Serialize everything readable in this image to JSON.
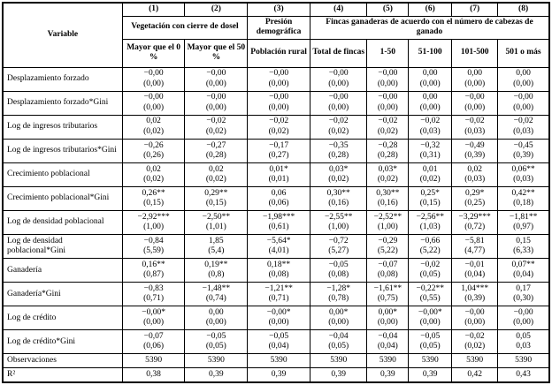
{
  "table": {
    "variable_header": "Variable",
    "col_numbers": [
      "(1)",
      "(2)",
      "(3)",
      "(4)",
      "(5)",
      "(6)",
      "(7)",
      "(8)"
    ],
    "group_headers": [
      {
        "label": "Vegetación con cierre de dosel",
        "span": 2
      },
      {
        "label": "Presión demográfica",
        "span": 1
      },
      {
        "label": "Fincas ganaderas de acuerdo con el número de cabezas de ganado",
        "span": 5
      }
    ],
    "sub_headers": [
      "Mayor que el 0 %",
      "Mayor que el 50 %",
      "Población rural",
      "Total de fincas",
      "1-50",
      "51-100",
      "101-500",
      "501 o más"
    ],
    "rows": [
      {
        "variable": "Desplazamiento forzado",
        "coefs": [
          "−0,00",
          "−0,00",
          "−0,00",
          "−0,00",
          "−0,00",
          "0,00",
          "0,00",
          "0,00"
        ],
        "ses": [
          "(0,00)",
          "(0,00)",
          "(0,00)",
          "(0,00)",
          "(0,00)",
          "(0,00)",
          "(0,00)",
          "(0,00)"
        ]
      },
      {
        "variable": "Desplazamiento forzado*Gini",
        "coefs": [
          "−0,00",
          "−0,00",
          "−0,00",
          "−0,00",
          "−0,00",
          "0,00",
          "−0,00",
          "−0,00"
        ],
        "ses": [
          "(0,00)",
          "(0,00)",
          "(0,00)",
          "(0,00)",
          "(0,00)",
          "(0,00)",
          "(0,00)",
          "(0,00)"
        ]
      },
      {
        "variable": "Log de ingresos tributarios",
        "coefs": [
          "0,02",
          "−0,02",
          "−0,02",
          "−0,02",
          "−0,02",
          "−0,02",
          "−0,02",
          "−0,02"
        ],
        "ses": [
          "(0,02)",
          "(0,02)",
          "(0,02)",
          "(0,02)",
          "(0,02)",
          "(0,03)",
          "(0,03)",
          "(0,03)"
        ]
      },
      {
        "variable": "Log de ingresos tributarios*Gini",
        "coefs": [
          "−0,26",
          "−0,27",
          "−0,17",
          "−0,35",
          "−0,28",
          "−0,32",
          "−0,49",
          "−0,45"
        ],
        "ses": [
          "(0,26)",
          "(0,28)",
          "(0,27)",
          "(0,28)",
          "(0,28)",
          "(0,31)",
          "(0,39)",
          "(0,39)"
        ]
      },
      {
        "variable": "Crecimiento poblacional",
        "coefs": [
          "0,02",
          "0,02",
          "0,01*",
          "0,03*",
          "0,03*",
          "0,01",
          "0,02",
          "0,06**"
        ],
        "ses": [
          "(0,02)",
          "(0,02)",
          "(0,01)",
          "(0,02)",
          "(0,02)",
          "(0,02)",
          "(0,03)",
          "(0,03)"
        ]
      },
      {
        "variable": "Crecimiento poblacional*Gini",
        "coefs": [
          "0,26**",
          "0,29**",
          "0,06",
          "0,30**",
          "0,30**",
          "0,25*",
          "0,29*",
          "0,42**"
        ],
        "ses": [
          "(0,15)",
          "(0,15)",
          "(0,06)",
          "(0,16)",
          "(0,16)",
          "(0,15)",
          "(0,25)",
          "(0,18)"
        ]
      },
      {
        "variable": "Log de densidad poblacional",
        "coefs": [
          "−2,92***",
          "−2,50**",
          "−1,98***",
          "−2,55**",
          "−2,52**",
          "−2,56**",
          "−3,29***",
          "−1,81**"
        ],
        "ses": [
          "(1,00)",
          "(1,01)",
          "(0,61)",
          "(1,00)",
          "(1,00)",
          "(1,03)",
          "(0,72)",
          "(0,97)"
        ]
      },
      {
        "variable": "Log de densidad poblacional*Gini",
        "coefs": [
          "−0,84",
          "1,85",
          "−5,64*",
          "−0,72",
          "−0,29",
          "−0,66",
          "−5,81",
          "0,15"
        ],
        "ses": [
          "(5,59)",
          "(5,4)",
          "(4,01)",
          "(5,27)",
          "(5,22)",
          "(5,22)",
          "(4,77)",
          "(6,33)"
        ]
      },
      {
        "variable": "Ganadería",
        "coefs": [
          "0,16**",
          "0,19**",
          "0,18**",
          "−0,05",
          "−0,07",
          "−0,02",
          "−0,01",
          "0,07**"
        ],
        "ses": [
          "(0,87)",
          "(0,8)",
          "(0,08)",
          "(0,08)",
          "(0,08)",
          "(0,05)",
          "(0,04)",
          "(0,04)"
        ]
      },
      {
        "variable": "Ganadería*Gini",
        "coefs": [
          "−0,83",
          "−1,48**",
          "−1,21**",
          "−1,28*",
          "−1,61**",
          "−0,22**",
          "1,04***",
          "0,17"
        ],
        "ses": [
          "(0,71)",
          "(0,74)",
          "(0,71)",
          "(0,78)",
          "(0,75)",
          "(0,55)",
          "(0,39)",
          "(0,30)"
        ]
      },
      {
        "variable": "Log de crédito",
        "coefs": [
          "−0,00*",
          "0,00",
          "−0,00*",
          "0,00*",
          "0,00*",
          "−0,00*",
          "−0,00",
          "−0,00"
        ],
        "ses": [
          "(0,00)",
          "(0,00)",
          "(0,00)",
          "(0,00)",
          "(0,00)",
          "(0,00)",
          "(0,00)",
          "(0,00)"
        ]
      },
      {
        "variable": "Log de crédito*Gini",
        "coefs": [
          "−0,07",
          "−0,05",
          "−0,05",
          "−0,04",
          "−0,04",
          "−0,05",
          "−0,02",
          "0,05"
        ],
        "ses": [
          "(0,06)",
          "(0,05)",
          "(0,04)",
          "(0,05)",
          "(0,04)",
          "(0,05)",
          "(0,02)",
          "0,03"
        ]
      }
    ],
    "summary_rows": [
      {
        "variable": "Observaciones",
        "values": [
          "5390",
          "5390",
          "5390",
          "5390",
          "5390",
          "5390",
          "5390",
          "5390"
        ]
      },
      {
        "variable": "R²",
        "values": [
          "0,38",
          "0,39",
          "0,39",
          "0,39",
          "0,39",
          "0,39",
          "0,42",
          "0,43"
        ]
      }
    ]
  }
}
